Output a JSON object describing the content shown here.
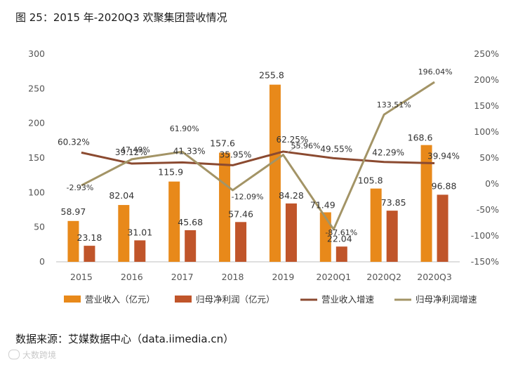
{
  "figure_title": "图 25：2015 年-2020Q3 欢聚集团营收情况",
  "source": "数据来源：艾媒数据中心（data.iimedia.cn）",
  "watermark": "大数跨境",
  "colors": {
    "revenue": "#E8891A",
    "profit": "#C0552A",
    "revenue_growth": "#8B4A30",
    "profit_growth": "#A39466",
    "axis_text": "#555555",
    "axis_line": "#bfbfbf"
  },
  "chart_data": {
    "type": "bar",
    "title": "图 25：2015 年-2020Q3 欢聚集团营收情况",
    "categories": [
      "2015",
      "2016",
      "2017",
      "2018",
      "2019",
      "2020Q1",
      "2020Q2",
      "2020Q3"
    ],
    "series": [
      {
        "name": "营业收入（亿元）",
        "type": "bar",
        "axis": "left",
        "values": [
          58.97,
          82.04,
          115.9,
          157.6,
          255.8,
          71.49,
          105.8,
          168.6
        ],
        "labels": [
          "58.97",
          "82.04",
          "115.9",
          "157.6",
          "255.8",
          "71.49",
          "105.8",
          "168.6"
        ]
      },
      {
        "name": "归母净利润（亿元）",
        "type": "bar",
        "axis": "left",
        "values": [
          23.18,
          31.01,
          45.68,
          57.46,
          84.28,
          22.04,
          73.85,
          96.88
        ],
        "labels": [
          "23.18",
          "31.01",
          "45.68",
          "57.46",
          "84.28",
          "22.04",
          "73.85",
          "96.88"
        ]
      },
      {
        "name": "营业收入增速",
        "type": "line",
        "axis": "right",
        "values": [
          60.32,
          39.12,
          41.33,
          35.95,
          62.25,
          49.55,
          42.29,
          39.94
        ],
        "labels": [
          "60.32%",
          "39.12%",
          "41.33%",
          "35.95%",
          "62.25%",
          "49.55%",
          "42.29%",
          "39.94%"
        ]
      },
      {
        "name": "归母净利润增速",
        "type": "line",
        "axis": "right",
        "values": [
          -2.93,
          47.49,
          61.9,
          -12.09,
          55.96,
          -87.61,
          133.51,
          196.04
        ],
        "labels": [
          "-2.93%",
          "47.49%",
          "61.90%",
          "-12.09%",
          "55.96%",
          "-87.61%",
          "133.51%",
          "196.04%"
        ]
      }
    ],
    "y_left": {
      "min": 0,
      "max": 300,
      "ticks": [
        "0",
        "50",
        "100",
        "150",
        "200",
        "250",
        "300"
      ]
    },
    "y_right": {
      "min": -150,
      "max": 250,
      "ticks": [
        "-150%",
        "-100%",
        "-50%",
        "0%",
        "50%",
        "100%",
        "150%",
        "200%",
        "250%"
      ]
    },
    "legend_position": "bottom",
    "grid": false
  }
}
